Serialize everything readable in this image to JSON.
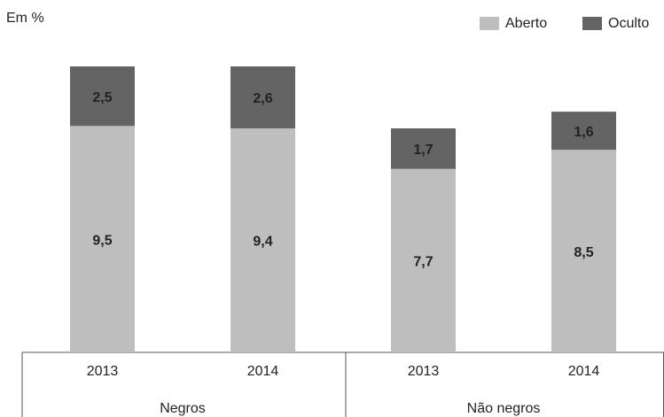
{
  "chart_data": {
    "type": "stacked_bar",
    "y_label": "Em %",
    "groups": [
      {
        "label": "Negros",
        "categories": [
          "2013",
          "2014"
        ]
      },
      {
        "label": "Não negros",
        "categories": [
          "2013",
          "2014"
        ]
      }
    ],
    "series": [
      {
        "name": "Aberto",
        "color": "#bebebe",
        "label_color": "#222222",
        "values": [
          9.5,
          9.4,
          7.7,
          8.5
        ],
        "value_labels": [
          "9,5",
          "9,4",
          "7,7",
          "8,5"
        ]
      },
      {
        "name": "Oculto",
        "color": "#646464",
        "label_color": "#ffffff",
        "values": [
          2.5,
          2.6,
          1.7,
          1.6
        ],
        "value_labels": [
          "2,5",
          "2,6",
          "1,7",
          "1,6"
        ]
      }
    ],
    "ylim": [
      0,
      12
    ],
    "legend": "top-right"
  }
}
